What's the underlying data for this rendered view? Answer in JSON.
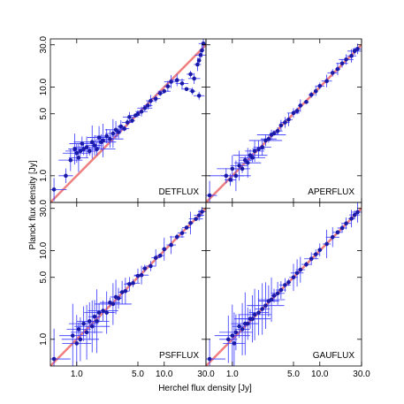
{
  "chart_data": {
    "type": "scatter",
    "xlabel": "Herchel flux density [Jy]",
    "ylabel": "Planck flux density [Jy]",
    "xscale": "log",
    "yscale": "log",
    "xlim": [
      0.5,
      30
    ],
    "ylim": [
      0.5,
      35
    ],
    "x_ticks": [
      1.0,
      5.0,
      10.0,
      30.0
    ],
    "x_tick_labels": [
      "1.0",
      "5.0",
      "10.0",
      "30.0"
    ],
    "y_ticks": [
      1.0,
      5.0,
      10.0,
      30.0
    ],
    "y_tick_labels": [
      "1.0",
      "5.0",
      "10.0",
      "30.0"
    ],
    "reference_line": "y = x",
    "colors": {
      "points": "#1a1aa8",
      "errorbars": "#3333ff",
      "reference": "#f08080"
    },
    "panels": [
      {
        "label": "DETFLUX",
        "points": [
          [
            0.55,
            0.7
          ],
          [
            0.75,
            1.0
          ],
          [
            0.85,
            1.5
          ],
          [
            0.95,
            2.0
          ],
          [
            1.0,
            1.8
          ],
          [
            1.05,
            1.6
          ],
          [
            1.1,
            1.9
          ],
          [
            1.15,
            2.3
          ],
          [
            1.2,
            2.0
          ],
          [
            1.3,
            2.1
          ],
          [
            1.4,
            1.9
          ],
          [
            1.5,
            2.4
          ],
          [
            1.6,
            2.2
          ],
          [
            1.7,
            2.0
          ],
          [
            1.8,
            2.7
          ],
          [
            1.9,
            2.4
          ],
          [
            2.0,
            2.5
          ],
          [
            2.2,
            2.8
          ],
          [
            2.4,
            2.6
          ],
          [
            2.6,
            3.0
          ],
          [
            2.8,
            3.3
          ],
          [
            3.0,
            3.1
          ],
          [
            3.2,
            3.6
          ],
          [
            3.5,
            3.4
          ],
          [
            3.8,
            4.0
          ],
          [
            4.0,
            4.6
          ],
          [
            4.3,
            4.2
          ],
          [
            4.7,
            4.8
          ],
          [
            5.0,
            5.0
          ],
          [
            5.5,
            5.3
          ],
          [
            6.0,
            5.8
          ],
          [
            6.5,
            6.2
          ],
          [
            7.0,
            7.0
          ],
          [
            8.0,
            7.4
          ],
          [
            9.0,
            8.5
          ],
          [
            10.0,
            9.0
          ],
          [
            11.0,
            10.2
          ],
          [
            12.0,
            11.5
          ],
          [
            14.0,
            12.0
          ],
          [
            16.0,
            11.0
          ],
          [
            18.0,
            9.5
          ],
          [
            20.0,
            14.0
          ],
          [
            21.0,
            9.0
          ],
          [
            22.0,
            12.5
          ],
          [
            24.0,
            18.0
          ],
          [
            25.0,
            20.0
          ],
          [
            26.0,
            23.0
          ],
          [
            27.0,
            26.0
          ],
          [
            28.0,
            31.0
          ],
          [
            25.0,
            8.0
          ]
        ]
      },
      {
        "label": "APERFLUX",
        "points": [
          [
            0.55,
            0.6
          ],
          [
            0.85,
            1.0
          ],
          [
            0.95,
            0.9
          ],
          [
            1.0,
            1.2
          ],
          [
            1.1,
            1.0
          ],
          [
            1.2,
            1.3
          ],
          [
            1.3,
            1.2
          ],
          [
            1.4,
            1.5
          ],
          [
            1.5,
            1.4
          ],
          [
            1.6,
            1.7
          ],
          [
            1.7,
            1.6
          ],
          [
            1.8,
            1.9
          ],
          [
            2.0,
            2.0
          ],
          [
            2.2,
            2.1
          ],
          [
            2.4,
            2.5
          ],
          [
            2.6,
            2.6
          ],
          [
            2.8,
            2.9
          ],
          [
            3.0,
            3.0
          ],
          [
            3.3,
            3.2
          ],
          [
            3.6,
            3.7
          ],
          [
            4.0,
            4.0
          ],
          [
            4.4,
            4.3
          ],
          [
            5.0,
            5.1
          ],
          [
            5.5,
            5.4
          ],
          [
            6.0,
            6.2
          ],
          [
            7.0,
            6.8
          ],
          [
            8.0,
            8.2
          ],
          [
            9.0,
            9.0
          ],
          [
            10.0,
            10.3
          ],
          [
            12.0,
            11.7
          ],
          [
            14.0,
            14.5
          ],
          [
            16.0,
            16.0
          ],
          [
            18.0,
            18.5
          ],
          [
            20.0,
            20.5
          ],
          [
            23.0,
            22.5
          ],
          [
            25.0,
            25.5
          ],
          [
            27.0,
            27.0
          ]
        ]
      },
      {
        "label": "PSFFLUX",
        "points": [
          [
            0.55,
            0.6
          ],
          [
            0.9,
            1.1
          ],
          [
            1.0,
            0.9
          ],
          [
            1.05,
            1.3
          ],
          [
            1.1,
            1.0
          ],
          [
            1.2,
            1.5
          ],
          [
            1.3,
            1.2
          ],
          [
            1.4,
            1.6
          ],
          [
            1.5,
            1.4
          ],
          [
            1.6,
            1.8
          ],
          [
            1.7,
            1.6
          ],
          [
            1.8,
            2.0
          ],
          [
            2.0,
            2.1
          ],
          [
            2.2,
            2.0
          ],
          [
            2.4,
            2.6
          ],
          [
            2.6,
            2.5
          ],
          [
            2.8,
            3.0
          ],
          [
            3.0,
            2.9
          ],
          [
            3.3,
            3.4
          ],
          [
            3.6,
            3.5
          ],
          [
            4.0,
            4.2
          ],
          [
            4.4,
            4.3
          ],
          [
            5.0,
            5.2
          ],
          [
            5.5,
            5.3
          ],
          [
            6.0,
            6.3
          ],
          [
            7.0,
            6.7
          ],
          [
            8.0,
            8.3
          ],
          [
            9.0,
            8.8
          ],
          [
            10.0,
            10.4
          ],
          [
            12.0,
            11.6
          ],
          [
            14.0,
            14.3
          ],
          [
            16.0,
            15.8
          ],
          [
            18.0,
            18.2
          ],
          [
            20.0,
            20.5
          ],
          [
            23.0,
            22.8
          ],
          [
            25.0,
            25.0
          ],
          [
            27.0,
            27.5
          ]
        ]
      },
      {
        "label": "GAUFLUX",
        "points": [
          [
            0.55,
            0.6
          ],
          [
            0.9,
            1.0
          ],
          [
            1.0,
            1.1
          ],
          [
            1.05,
            0.9
          ],
          [
            1.1,
            1.2
          ],
          [
            1.2,
            1.4
          ],
          [
            1.3,
            1.3
          ],
          [
            1.4,
            1.5
          ],
          [
            1.5,
            1.5
          ],
          [
            1.6,
            1.7
          ],
          [
            1.7,
            1.7
          ],
          [
            1.8,
            1.9
          ],
          [
            2.0,
            2.0
          ],
          [
            2.2,
            2.2
          ],
          [
            2.4,
            2.4
          ],
          [
            2.6,
            2.7
          ],
          [
            2.8,
            2.8
          ],
          [
            3.0,
            3.1
          ],
          [
            3.3,
            3.3
          ],
          [
            3.6,
            3.6
          ],
          [
            4.0,
            4.1
          ],
          [
            4.4,
            4.4
          ],
          [
            5.0,
            5.0
          ],
          [
            5.5,
            5.6
          ],
          [
            6.0,
            6.1
          ],
          [
            7.0,
            7.0
          ],
          [
            8.0,
            8.1
          ],
          [
            9.0,
            9.1
          ],
          [
            10.0,
            10.2
          ],
          [
            12.0,
            11.9
          ],
          [
            14.0,
            14.2
          ],
          [
            16.0,
            16.1
          ],
          [
            18.0,
            18.0
          ],
          [
            20.0,
            20.3
          ],
          [
            23.0,
            23.0
          ],
          [
            25.0,
            25.3
          ],
          [
            27.0,
            27.2
          ]
        ]
      }
    ]
  }
}
